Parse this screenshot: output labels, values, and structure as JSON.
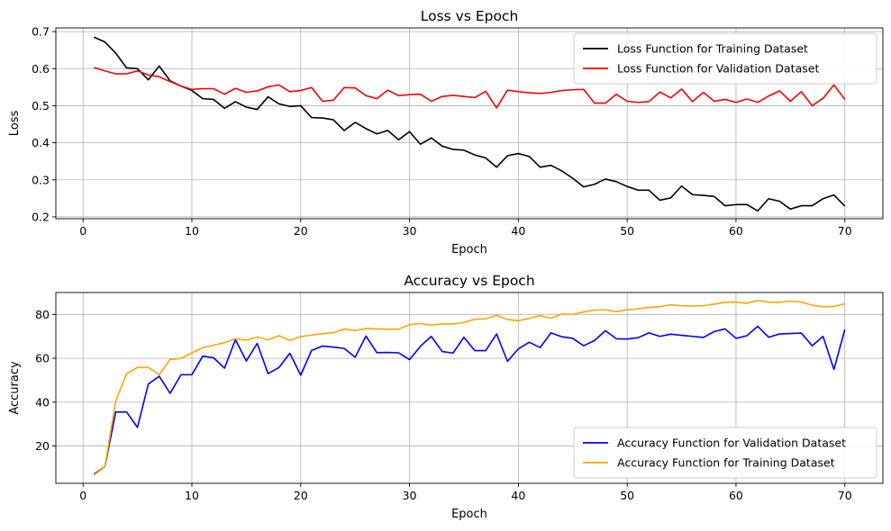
{
  "chart_data": [
    {
      "type": "line",
      "title": "Loss vs Epoch",
      "xlabel": "Epoch",
      "ylabel": "Loss",
      "xlim": [
        -2.5,
        73.5
      ],
      "ylim": [
        0.195,
        0.71
      ],
      "xticks": [
        0,
        10,
        20,
        30,
        40,
        50,
        60,
        70
      ],
      "xtick_labels": [
        "0",
        "10",
        "20",
        "30",
        "40",
        "50",
        "60",
        "70"
      ],
      "yticks": [
        0.2,
        0.3,
        0.4,
        0.5,
        0.6,
        0.7
      ],
      "ytick_labels": [
        "0.2",
        "0.3",
        "0.4",
        "0.5",
        "0.6",
        "0.7"
      ],
      "grid": true,
      "legend_position": "top-right",
      "series": [
        {
          "name": "Loss Function for Training Dataset",
          "color": "#000000",
          "values": [
            0.685,
            0.672,
            0.642,
            0.602,
            0.6,
            0.57,
            0.607,
            0.567,
            0.553,
            0.541,
            0.519,
            0.517,
            0.493,
            0.511,
            0.496,
            0.49,
            0.524,
            0.505,
            0.498,
            0.5,
            0.468,
            0.467,
            0.462,
            0.433,
            0.455,
            0.438,
            0.424,
            0.433,
            0.408,
            0.43,
            0.396,
            0.413,
            0.391,
            0.382,
            0.38,
            0.367,
            0.359,
            0.334,
            0.365,
            0.371,
            0.363,
            0.334,
            0.339,
            0.324,
            0.304,
            0.281,
            0.288,
            0.302,
            0.295,
            0.282,
            0.272,
            0.272,
            0.245,
            0.251,
            0.283,
            0.26,
            0.258,
            0.255,
            0.23,
            0.233,
            0.233,
            0.216,
            0.249,
            0.242,
            0.221,
            0.23,
            0.23,
            0.249,
            0.259,
            0.229
          ]
        },
        {
          "name": "Loss Function for Validation Dataset",
          "color": "#ff0000",
          "values": [
            0.603,
            0.594,
            0.586,
            0.586,
            0.594,
            0.583,
            0.578,
            0.565,
            0.553,
            0.544,
            0.546,
            0.546,
            0.531,
            0.547,
            0.536,
            0.54,
            0.551,
            0.556,
            0.538,
            0.541,
            0.549,
            0.512,
            0.515,
            0.549,
            0.548,
            0.527,
            0.519,
            0.542,
            0.527,
            0.53,
            0.531,
            0.512,
            0.525,
            0.528,
            0.525,
            0.522,
            0.539,
            0.494,
            0.542,
            0.538,
            0.535,
            0.533,
            0.536,
            0.541,
            0.543,
            0.544,
            0.507,
            0.507,
            0.531,
            0.512,
            0.509,
            0.511,
            0.537,
            0.521,
            0.545,
            0.511,
            0.536,
            0.512,
            0.517,
            0.509,
            0.518,
            0.509,
            0.526,
            0.54,
            0.512,
            0.538,
            0.5,
            0.52,
            0.556,
            0.517
          ]
        }
      ]
    },
    {
      "type": "line",
      "title": "Accuracy vs Epoch",
      "xlabel": "Epoch",
      "ylabel": "Accuracy",
      "xlim": [
        -2.5,
        73.5
      ],
      "ylim": [
        3.0,
        90.0
      ],
      "xticks": [
        0,
        10,
        20,
        30,
        40,
        50,
        60,
        70
      ],
      "xtick_labels": [
        "0",
        "10",
        "20",
        "30",
        "40",
        "50",
        "60",
        "70"
      ],
      "yticks": [
        20,
        40,
        60,
        80
      ],
      "ytick_labels": [
        "20",
        "40",
        "60",
        "80"
      ],
      "grid": true,
      "legend_position": "bottom-right",
      "series": [
        {
          "name": "Accuracy Function for Validation Dataset",
          "color": "#0000ff",
          "values": [
            7.2,
            10.5,
            35.5,
            35.5,
            28.5,
            48.3,
            51.8,
            44.0,
            52.5,
            52.5,
            61.0,
            60.2,
            55.5,
            68.5,
            58.8,
            66.8,
            53.0,
            55.8,
            62.3,
            52.3,
            63.6,
            65.6,
            65.1,
            64.5,
            60.5,
            70.1,
            62.6,
            62.7,
            62.5,
            59.4,
            65.5,
            70.0,
            63.1,
            62.4,
            69.6,
            63.5,
            63.5,
            71.1,
            58.6,
            64.3,
            67.3,
            64.9,
            71.6,
            69.8,
            69.1,
            65.7,
            68.1,
            72.6,
            68.9,
            68.8,
            69.4,
            71.6,
            70.0,
            71.0,
            70.5,
            70.0,
            69.5,
            72.2,
            73.4,
            69.1,
            70.3,
            74.6,
            69.6,
            71.1,
            71.3,
            71.5,
            65.7,
            70.0,
            54.9,
            73.1
          ]
        },
        {
          "name": "Accuracy Function for Training Dataset",
          "color": "#ffa500",
          "values": [
            6.8,
            10.5,
            40.5,
            53.0,
            55.8,
            55.8,
            52.5,
            59.5,
            59.9,
            62.5,
            64.8,
            66.0,
            67.1,
            68.9,
            68.3,
            69.7,
            68.4,
            70.3,
            68.1,
            69.9,
            70.6,
            71.2,
            71.7,
            73.4,
            72.6,
            73.6,
            73.4,
            73.2,
            73.3,
            75.3,
            75.9,
            75.1,
            75.7,
            75.6,
            76.4,
            77.8,
            78.0,
            79.6,
            77.7,
            77.1,
            78.2,
            79.4,
            78.3,
            80.2,
            80.0,
            81.1,
            82.0,
            82.1,
            81.3,
            82.1,
            82.6,
            83.2,
            83.5,
            84.4,
            84.0,
            83.8,
            84.0,
            84.7,
            85.5,
            85.6,
            85.1,
            86.4,
            85.6,
            85.5,
            86.1,
            85.6,
            84.2,
            83.5,
            83.6,
            84.9
          ]
        }
      ]
    }
  ]
}
